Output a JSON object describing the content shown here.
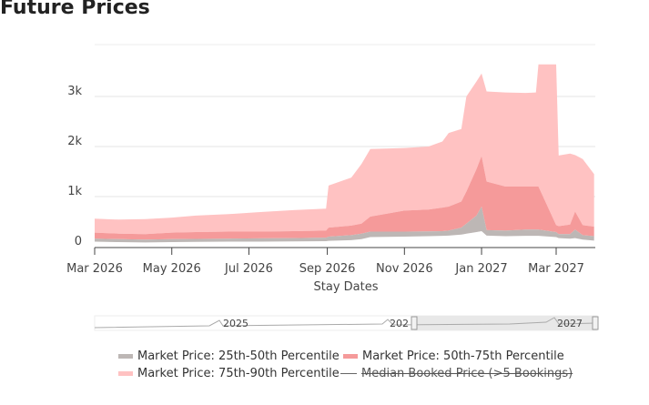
{
  "title": "Future Prices",
  "chart_data": {
    "type": "area",
    "xlabel": "Stay Dates",
    "ylabel": "",
    "ylim": [
      0,
      3900
    ],
    "xlim": [
      "2026-03-01",
      "2027-03-31"
    ],
    "grid": true,
    "y_ticks": [
      {
        "v": 0,
        "label": "0"
      },
      {
        "v": 1000,
        "label": "1k"
      },
      {
        "v": 2000,
        "label": "2k"
      },
      {
        "v": 3000,
        "label": "3k"
      }
    ],
    "x_ticks": [
      {
        "d": "2026-03-01",
        "label": "Mar 2026"
      },
      {
        "d": "2026-05-01",
        "label": "May 2026"
      },
      {
        "d": "2026-07-01",
        "label": "Jul 2026"
      },
      {
        "d": "2026-09-01",
        "label": "Sep 2026"
      },
      {
        "d": "2026-11-01",
        "label": "Nov 2026"
      },
      {
        "d": "2027-01-01",
        "label": "Jan 2027"
      },
      {
        "d": "2027-03-01",
        "label": "Mar 2027"
      }
    ],
    "x": [
      "2026-03-01",
      "2026-03-20",
      "2026-04-10",
      "2026-05-01",
      "2026-05-20",
      "2026-06-15",
      "2026-07-10",
      "2026-08-05",
      "2026-08-31",
      "2026-09-02",
      "2026-09-20",
      "2026-09-28",
      "2026-10-05",
      "2026-11-01",
      "2026-11-20",
      "2026-12-01",
      "2026-12-06",
      "2026-12-16",
      "2026-12-20",
      "2026-12-28",
      "2027-01-01",
      "2027-01-05",
      "2027-01-20",
      "2027-02-05",
      "2027-02-13",
      "2027-02-15",
      "2027-03-01",
      "2027-03-03",
      "2027-03-12",
      "2027-03-16",
      "2027-03-22",
      "2027-03-31"
    ],
    "series": [
      {
        "name": "Market Price: 25th-50th Percentile",
        "color": "#bdb7b5",
        "lower": [
          100,
          90,
          85,
          90,
          95,
          100,
          100,
          105,
          110,
          115,
          130,
          150,
          190,
          200,
          210,
          215,
          220,
          240,
          260,
          290,
          310,
          220,
          210,
          215,
          215,
          215,
          190,
          170,
          160,
          170,
          140,
          120
        ],
        "upper": [
          160,
          150,
          140,
          150,
          155,
          160,
          165,
          170,
          180,
          200,
          230,
          260,
          300,
          300,
          305,
          310,
          320,
          380,
          460,
          620,
          800,
          330,
          320,
          340,
          340,
          340,
          290,
          250,
          250,
          340,
          230,
          210
        ]
      },
      {
        "name": "Market Price: 50th-75th Percentile",
        "color": "#f59a9a",
        "upper": [
          280,
          260,
          250,
          280,
          290,
          300,
          300,
          310,
          320,
          380,
          420,
          460,
          600,
          720,
          740,
          780,
          800,
          900,
          1100,
          1550,
          1810,
          1300,
          1200,
          1200,
          1200,
          1200,
          430,
          410,
          440,
          700,
          430,
          400
        ]
      },
      {
        "name": "Market Price: 75th-90th Percentile",
        "color": "#ffc2c2",
        "upper": [
          560,
          540,
          550,
          580,
          620,
          650,
          690,
          730,
          760,
          1220,
          1380,
          1650,
          1950,
          1970,
          2000,
          2100,
          2270,
          2350,
          3000,
          3300,
          3460,
          3100,
          3080,
          3070,
          3080,
          3640,
          3640,
          1820,
          1860,
          1830,
          1750,
          1450
        ]
      },
      {
        "name": "Median Booked Price (>5 Bookings)",
        "color": "#666666",
        "hidden": true
      }
    ]
  },
  "rangeslider": {
    "labels": [
      "2025",
      "202",
      "2027"
    ]
  }
}
